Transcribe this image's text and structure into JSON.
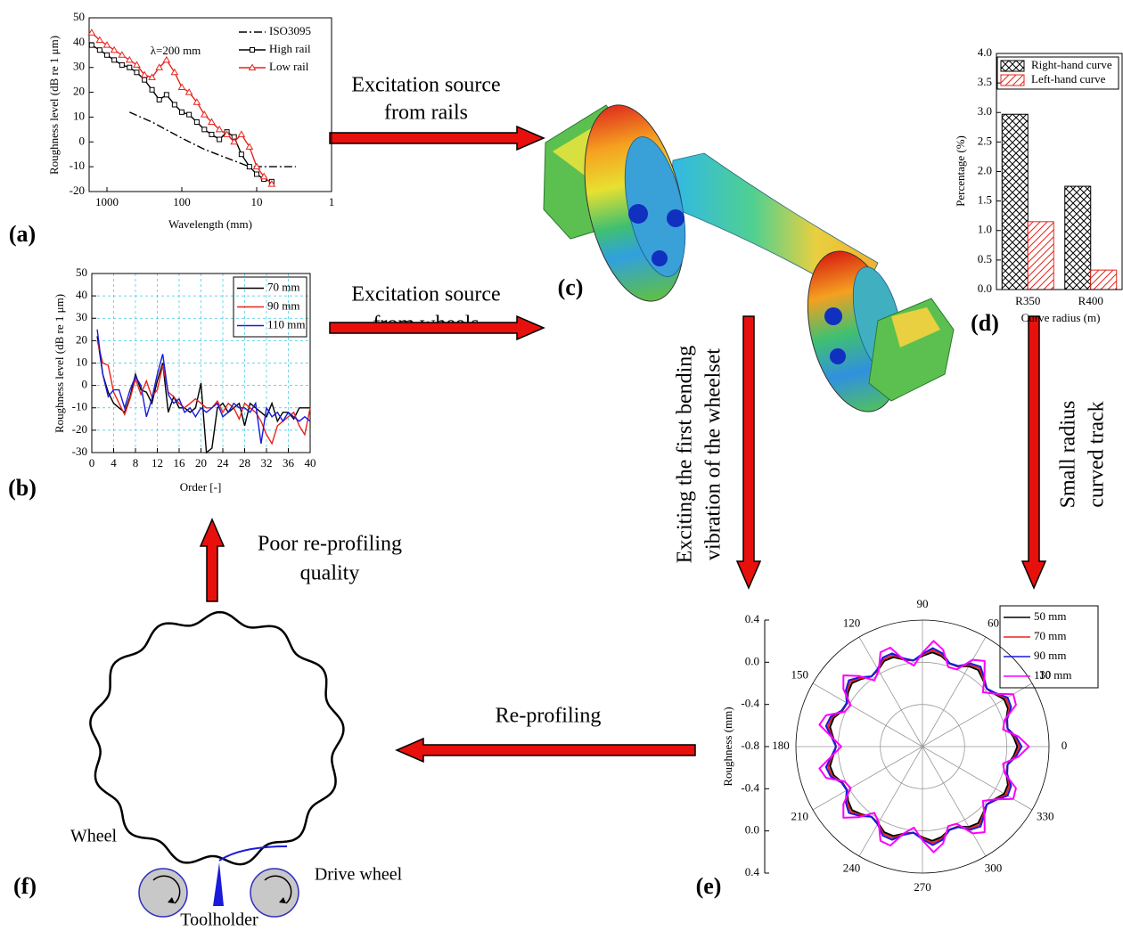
{
  "chart_data": [
    {
      "type": "line",
      "panel": "(a)",
      "x_label": "Wavelength (mm)",
      "y_label": "Roughness level (dB re 1 μm)",
      "annotation": "λ=200 mm",
      "xscale": "log",
      "xlim": [
        1730,
        1
      ],
      "xticks": [
        1000,
        100,
        10,
        1
      ],
      "ylim": [
        -20,
        50
      ],
      "yticks": [
        -20,
        -10,
        0,
        10,
        20,
        30,
        40,
        50
      ],
      "grid": false,
      "legend": "upper right",
      "legend_frame": false,
      "series": [
        {
          "name": "ISO3095",
          "color": "#000000",
          "dash": "dashdot",
          "marker": "none",
          "x": [
            500,
            250,
            100,
            50,
            25,
            12.5,
            8,
            3
          ],
          "values": [
            12,
            8,
            1.5,
            -3,
            -6.5,
            -10,
            -10,
            -10
          ]
        },
        {
          "name": "High rail",
          "color": "#000000",
          "dash": "solid",
          "marker": "square",
          "x": [
            1600,
            1250,
            1000,
            800,
            630,
            500,
            400,
            315,
            250,
            200,
            160,
            125,
            100,
            80,
            63,
            50,
            40,
            31.5,
            25,
            20,
            16,
            12.5,
            10,
            8,
            6.3
          ],
          "values": [
            39,
            37,
            35,
            33,
            31,
            30,
            28,
            25,
            21,
            17,
            19,
            15,
            12,
            11,
            8,
            5,
            3,
            1,
            4,
            2,
            -5,
            -10,
            -13,
            -15,
            -16
          ]
        },
        {
          "name": "Low rail",
          "color": "#e8241c",
          "dash": "solid",
          "marker": "triangle",
          "x": [
            1600,
            1250,
            1000,
            800,
            630,
            500,
            400,
            315,
            250,
            200,
            160,
            125,
            100,
            80,
            63,
            50,
            40,
            31.5,
            25,
            20,
            16,
            12.5,
            10,
            8,
            6.3
          ],
          "values": [
            44,
            41,
            39,
            37,
            35,
            33,
            31,
            27,
            26,
            30,
            33,
            28,
            22,
            20,
            16,
            11,
            8,
            5,
            3,
            0,
            3,
            -2,
            -10,
            -14,
            -17
          ]
        }
      ]
    },
    {
      "type": "line",
      "panel": "(b)",
      "x_label": "Order [-]",
      "y_label": "Roughness level (dB re 1 μm)",
      "xlim": [
        0,
        40
      ],
      "xticks": [
        0,
        4,
        8,
        12,
        16,
        20,
        24,
        28,
        32,
        36,
        40
      ],
      "ylim": [
        -30,
        50
      ],
      "yticks": [
        -30,
        -20,
        -10,
        0,
        10,
        20,
        30,
        40,
        50
      ],
      "grid": true,
      "legend": "upper right",
      "legend_frame": true,
      "x": [
        1,
        2,
        3,
        4,
        5,
        6,
        7,
        8,
        9,
        10,
        11,
        12,
        13,
        14,
        15,
        16,
        17,
        18,
        19,
        20,
        21,
        22,
        23,
        24,
        25,
        26,
        27,
        28,
        29,
        30,
        31,
        32,
        33,
        34,
        35,
        36,
        37,
        38,
        39,
        40
      ],
      "series": [
        {
          "name": "70 mm",
          "color": "#000000",
          "dash": "solid",
          "marker": "none",
          "values": [
            22,
            5,
            -3,
            -8,
            -10,
            -12,
            -5,
            5,
            -2,
            -3,
            -8,
            2,
            10,
            -12,
            -5,
            -10,
            -10,
            -12,
            -10,
            1,
            -30,
            -28,
            -10,
            -8,
            -12,
            -10,
            -8,
            -18,
            -8,
            -10,
            -12,
            -14,
            -8,
            -16,
            -12,
            -12,
            -15,
            -10,
            -10,
            -10
          ]
        },
        {
          "name": "90 mm",
          "color": "#e8241c",
          "dash": "solid",
          "marker": "none",
          "values": [
            20,
            10,
            9,
            -3,
            -8,
            -13,
            -6,
            3,
            -4,
            2,
            -5,
            -2,
            9,
            -3,
            -5,
            -8,
            -10,
            -8,
            -6,
            -8,
            -10,
            -10,
            -7,
            -12,
            -8,
            -10,
            -15,
            -8,
            -10,
            -12,
            -16,
            -22,
            -26,
            -18,
            -16,
            -14,
            -12,
            -18,
            -22,
            -10
          ]
        },
        {
          "name": "110 mm",
          "color": "#1a1adb",
          "dash": "solid",
          "marker": "none",
          "values": [
            25,
            5,
            -5,
            -2,
            -2,
            -10,
            -2,
            4,
            0,
            -14,
            -6,
            5,
            14,
            -4,
            -8,
            -6,
            -12,
            -10,
            -14,
            -10,
            -12,
            -10,
            -8,
            -14,
            -12,
            -8,
            -10,
            -10,
            -12,
            -8,
            -26,
            -10,
            -14,
            -12,
            -16,
            -12,
            -14,
            -16,
            -14,
            -16
          ]
        }
      ]
    },
    {
      "type": "bar",
      "panel": "(d)",
      "x_label": "Curve radius (m)",
      "y_label": "Percentage (%)",
      "categories": [
        "R350",
        "R400"
      ],
      "ylim": [
        0,
        4
      ],
      "yticks": [
        {
          "value": 0,
          "label": "0.0"
        },
        0.5,
        {
          "value": 1,
          "label": "1.0"
        },
        1.5,
        {
          "value": 2,
          "label": "2.0"
        },
        2.5,
        {
          "value": 3,
          "label": "3.0"
        },
        3.5,
        {
          "value": 4,
          "label": "4.0"
        }
      ],
      "legend": "upper right",
      "legend_frame": true,
      "series": [
        {
          "name": "Right-hand curve",
          "color": "#000000",
          "hatch": "crosshatch",
          "values": [
            2.97,
            1.75
          ]
        },
        {
          "name": "Left-hand curve",
          "color": "#e8241c",
          "hatch": "diagonal",
          "values": [
            1.15,
            0.33
          ]
        }
      ]
    },
    {
      "type": "polar",
      "panel": "(e)",
      "r_label": "Roughness (mm)",
      "rlim": [
        -0.8,
        0.4
      ],
      "rticks": [
        -0.8,
        -0.4,
        {
          "value": 0,
          "label": "0.0"
        },
        0.4
      ],
      "thetaticks": [
        0,
        30,
        60,
        90,
        120,
        150,
        180,
        210,
        240,
        270,
        300,
        330
      ],
      "legend": "upper right",
      "legend_frame": true,
      "theta": [
        0,
        6,
        12,
        18,
        24,
        30,
        36,
        42,
        48,
        54,
        60,
        66,
        72,
        78,
        84,
        90,
        96,
        102,
        108,
        114,
        120,
        126,
        132,
        138,
        144,
        150,
        156,
        162,
        168,
        174,
        180,
        186,
        192,
        198,
        204,
        210,
        216,
        222,
        228,
        234,
        240,
        246,
        252,
        258,
        264,
        270,
        276,
        282,
        288,
        294,
        300,
        306,
        312,
        318,
        324,
        330,
        336,
        342,
        348,
        354
      ],
      "series": [
        {
          "name": "50 mm",
          "color": "#000000",
          "values": [
            0.1,
            0.068,
            0.024,
            0.036,
            0.087,
            0.095,
            0.048,
            0.02,
            0.056,
            0.098,
            0.08,
            0.03,
            0.028,
            0.076,
            0.099,
            0.06,
            0.021,
            0.044,
            0.092,
            0.09,
            0.04,
            0.022,
            0.064,
            0.1,
            0.072,
            0.025,
            0.033,
            0.084,
            0.096,
            0.052,
            0.02,
            0.052,
            0.096,
            0.084,
            0.033,
            0.025,
            0.072,
            0.1,
            0.064,
            0.022,
            0.04,
            0.09,
            0.092,
            0.044,
            0.021,
            0.06,
            0.099,
            0.076,
            0.028,
            0.03,
            0.08,
            0.098,
            0.056,
            0.02,
            0.048,
            0.095,
            0.087,
            0.036,
            0.024,
            0.068
          ]
        },
        {
          "name": "70 mm",
          "color": "#e8241c",
          "values": [
            0.12,
            0.081,
            0.025,
            0.041,
            0.104,
            0.114,
            0.055,
            0.021,
            0.065,
            0.118,
            0.095,
            0.033,
            0.03,
            0.091,
            0.119,
            0.07,
            0.021,
            0.05,
            0.111,
            0.107,
            0.045,
            0.023,
            0.075,
            0.12,
            0.086,
            0.027,
            0.037,
            0.1,
            0.116,
            0.06,
            0.02,
            0.06,
            0.116,
            0.1,
            0.037,
            0.027,
            0.086,
            0.12,
            0.075,
            0.023,
            0.045,
            0.107,
            0.111,
            0.05,
            0.021,
            0.07,
            0.119,
            0.091,
            0.03,
            0.033,
            0.095,
            0.118,
            0.065,
            0.021,
            0.055,
            0.114,
            0.104,
            0.041,
            0.025,
            0.081
          ]
        },
        {
          "name": "90 mm",
          "color": "#1a1adb",
          "values": [
            0.14,
            0.093,
            0.025,
            0.045,
            0.12,
            0.132,
            0.061,
            0.021,
            0.074,
            0.137,
            0.11,
            0.036,
            0.031,
            0.105,
            0.139,
            0.08,
            0.021,
            0.055,
            0.129,
            0.124,
            0.05,
            0.023,
            0.086,
            0.139,
            0.099,
            0.028,
            0.04,
            0.115,
            0.135,
            0.067,
            0.02,
            0.067,
            0.135,
            0.115,
            0.04,
            0.028,
            0.099,
            0.139,
            0.086,
            0.023,
            0.05,
            0.124,
            0.129,
            0.055,
            0.021,
            0.08,
            0.139,
            0.105,
            0.031,
            0.036,
            0.11,
            0.137,
            0.074,
            0.021,
            0.061,
            0.132,
            0.12,
            0.045,
            0.025,
            0.093
          ]
        },
        {
          "name": "110 mm",
          "color": "#ff00ff",
          "values": [
            0.21,
            0.115,
            -0.019,
            0.019,
            0.17,
            0.194,
            0.053,
            -0.029,
            0.078,
            0.204,
            0.15,
            0.001,
            -0.007,
            0.139,
            0.208,
            0.09,
            -0.028,
            0.041,
            0.187,
            0.179,
            0.03,
            -0.024,
            0.102,
            0.209,
            0.127,
            -0.014,
            0.01,
            0.161,
            0.199,
            0.065,
            -0.03,
            0.065,
            0.199,
            0.161,
            0.01,
            -0.014,
            0.127,
            0.209,
            0.102,
            -0.024,
            0.03,
            0.179,
            0.187,
            0.041,
            -0.028,
            0.09,
            0.208,
            0.139,
            -0.007,
            0.001,
            0.15,
            0.204,
            0.078,
            -0.029,
            0.053,
            0.194,
            0.17,
            0.019,
            -0.019,
            0.115
          ]
        }
      ]
    }
  ],
  "diagram": {
    "panel_c": "(c)",
    "panel_f": "(f)",
    "arrows": {
      "rails": [
        "Excitation source",
        "from rails"
      ],
      "wheels": [
        "Excitation source",
        "from wheels"
      ],
      "bending": [
        "Exciting the first bending",
        "vibration of the wheelset"
      ],
      "curve": [
        "Small radius",
        "curved track"
      ],
      "reprofiling": "Re-profiling",
      "quality": [
        "Poor re-profiling",
        "quality"
      ]
    },
    "labels": {
      "wheel": "Wheel",
      "drive_wheel": "Drive wheel",
      "toolholder": "Toolholder"
    }
  }
}
